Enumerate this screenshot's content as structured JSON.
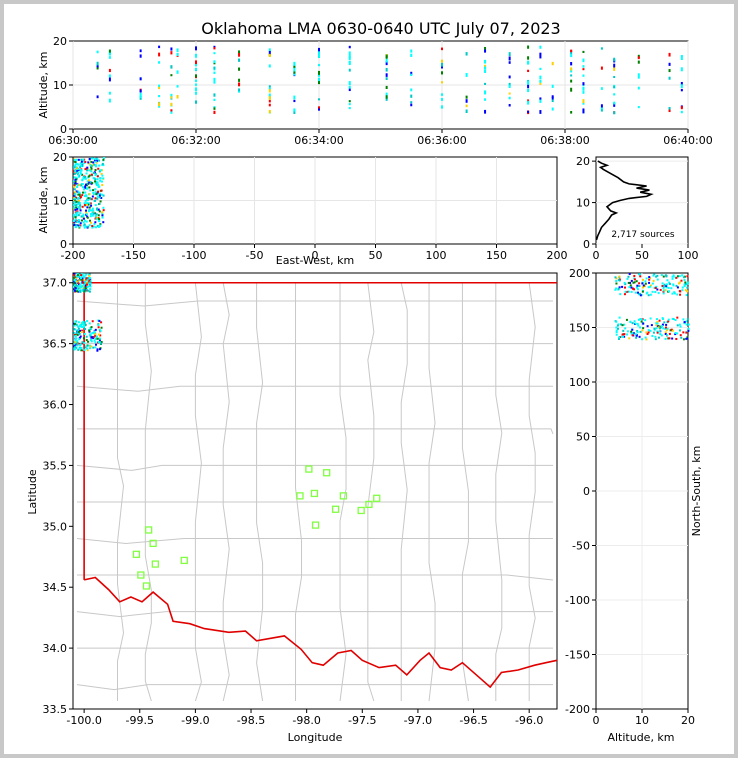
{
  "title": "Oklahoma LMA 0630-0640 UTC July 07, 2023",
  "colors": {
    "border": "#c8c8c8",
    "background": "#ffffff",
    "state_line": "#e00000",
    "county_line": "#c8c8c8",
    "station": "#80ff40",
    "density_low": "#00ffff",
    "density_mid": "#0000ff",
    "density_high": "#ff0000"
  },
  "chart_data": [
    {
      "id": "time_height",
      "type": "scatter",
      "ylabel": "Altitude, km",
      "ylim": [
        0,
        20
      ],
      "yticks": [
        "0",
        "10",
        "20"
      ],
      "xticks": [
        "06:30:00",
        "06:32:00",
        "06:34:00",
        "06:36:00",
        "06:38:00",
        "06:40:00"
      ],
      "grid": true,
      "columns_minutes": [
        0.4,
        0.6,
        1.1,
        1.4,
        1.6,
        1.7,
        2.0,
        2.3,
        2.7,
        3.2,
        3.6,
        4.0,
        4.5,
        5.1,
        5.5,
        6.0,
        6.4,
        6.7,
        7.1,
        7.4,
        7.6,
        7.8,
        8.1,
        8.3,
        8.6,
        8.8,
        9.2,
        9.7,
        9.9
      ]
    },
    {
      "id": "east_west_altitude",
      "type": "scatter",
      "xlabel": "East-West, km",
      "ylabel": "Altitude, km",
      "xlim": [
        -200,
        200
      ],
      "ylim": [
        0,
        20
      ],
      "xticks": [
        "-200",
        "-150",
        "-100",
        "-50",
        "0",
        "50",
        "100",
        "150",
        "200"
      ],
      "yticks": [
        "0",
        "10",
        "20"
      ],
      "grid": true,
      "source_cluster": {
        "x_range_km": [
          -200,
          -175
        ],
        "alt_range_km": [
          4,
          20
        ]
      }
    },
    {
      "id": "altitude_histogram",
      "type": "line",
      "xlim": [
        0,
        100
      ],
      "ylim": [
        0,
        21
      ],
      "xticks": [
        "0",
        "50",
        "100"
      ],
      "yticks": [
        "0",
        "10",
        "20"
      ],
      "annotation": "2,717 sources",
      "profile": [
        [
          0.5,
          1
        ],
        [
          2,
          2
        ],
        [
          4,
          3
        ],
        [
          6,
          4
        ],
        [
          10,
          5
        ],
        [
          14,
          6
        ],
        [
          17,
          7
        ],
        [
          22,
          7.5
        ],
        [
          16,
          8
        ],
        [
          12,
          9
        ],
        [
          18,
          10
        ],
        [
          26,
          10.5
        ],
        [
          36,
          11
        ],
        [
          55,
          11.5
        ],
        [
          60,
          12
        ],
        [
          48,
          12.5
        ],
        [
          58,
          13
        ],
        [
          44,
          13.5
        ],
        [
          55,
          14
        ],
        [
          36,
          14.5
        ],
        [
          30,
          15
        ],
        [
          24,
          16
        ],
        [
          16,
          17
        ],
        [
          8,
          18
        ],
        [
          5,
          18.5
        ],
        [
          12,
          19
        ],
        [
          6,
          19.5
        ],
        [
          2,
          20
        ]
      ]
    },
    {
      "id": "plan_view",
      "type": "scatter",
      "xlabel": "Longitude",
      "ylabel": "Latitude",
      "xlim": [
        -100.1,
        -95.75
      ],
      "ylim": [
        33.5,
        37.08
      ],
      "xticks": [
        "-100.0",
        "-99.5",
        "-99.0",
        "-98.5",
        "-98.0",
        "-97.5",
        "-97.0",
        "-96.5",
        "-96.0"
      ],
      "yticks": [
        "33.5",
        "34.0",
        "34.5",
        "35.0",
        "35.5",
        "36.0",
        "36.5",
        "37.0"
      ],
      "stations": [
        [
          -97.98,
          35.47
        ],
        [
          -97.82,
          35.44
        ],
        [
          -98.06,
          35.25
        ],
        [
          -97.93,
          35.27
        ],
        [
          -97.67,
          35.25
        ],
        [
          -97.37,
          35.23
        ],
        [
          -97.44,
          35.18
        ],
        [
          -97.74,
          35.14
        ],
        [
          -97.51,
          35.13
        ],
        [
          -97.92,
          35.01
        ],
        [
          -99.42,
          34.97
        ],
        [
          -99.38,
          34.86
        ],
        [
          -99.53,
          34.77
        ],
        [
          -99.1,
          34.72
        ],
        [
          -99.36,
          34.69
        ],
        [
          -99.49,
          34.6
        ],
        [
          -99.44,
          34.51
        ]
      ],
      "source_clusters": [
        {
          "lon_range": [
            -100.1,
            -99.95
          ],
          "lat_range": [
            36.93,
            37.08
          ]
        },
        {
          "lon_range": [
            -100.1,
            -99.85
          ],
          "lat_range": [
            36.45,
            36.7
          ]
        }
      ]
    },
    {
      "id": "altitude_north_south",
      "type": "scatter",
      "xlabel": "Altitude, km",
      "ylabel": "North-South, km",
      "xlim": [
        0,
        20
      ],
      "ylim": [
        -200,
        200
      ],
      "xticks": [
        "0",
        "10",
        "20"
      ],
      "yticks": [
        "200",
        "150",
        "100",
        "50",
        "0",
        "-50",
        "-100",
        "-150",
        "-200"
      ],
      "source_clusters": [
        {
          "alt_range_km": [
            4,
            20
          ],
          "ns_range_km": [
            180,
            200
          ]
        },
        {
          "alt_range_km": [
            4,
            20
          ],
          "ns_range_km": [
            140,
            160
          ]
        }
      ]
    }
  ]
}
